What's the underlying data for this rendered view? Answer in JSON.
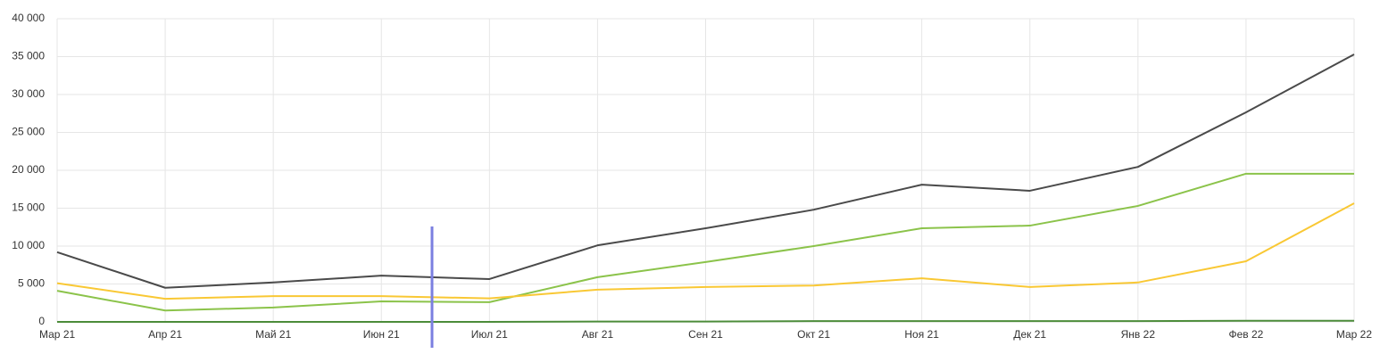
{
  "chart_data": {
    "type": "line",
    "categories": [
      "Мар 21",
      "Апр 21",
      "Май 21",
      "Июн 21",
      "Июл 21",
      "Авг 21",
      "Сен 21",
      "Окт 21",
      "Ноя 21",
      "Дек 21",
      "Янв 22",
      "Фев 22",
      "Мар 22"
    ],
    "series": [
      {
        "color": "#4a4a4a",
        "values": [
          9200,
          4500,
          5200,
          6100,
          5650,
          10100,
          12350,
          14800,
          18100,
          17300,
          20450,
          27650,
          35300
        ]
      },
      {
        "color": "#8bc34a",
        "values": [
          4100,
          1500,
          1900,
          2700,
          2600,
          5900,
          7900,
          10000,
          12350,
          12700,
          15300,
          19550,
          19550
        ]
      },
      {
        "color": "#f9c834",
        "values": [
          5100,
          3050,
          3400,
          3400,
          3100,
          4250,
          4600,
          4800,
          5750,
          4600,
          5200,
          8000,
          15650
        ]
      },
      {
        "color": "#4c8c3a",
        "values": [
          0,
          0,
          0,
          0,
          0,
          50,
          50,
          100,
          100,
          100,
          100,
          150,
          150
        ]
      }
    ],
    "ylim": [
      0,
      40000
    ],
    "yticks": [
      0,
      {
        "value": 5000,
        "label": "5 000"
      },
      {
        "value": 10000,
        "label": "10 000"
      },
      {
        "value": 15000,
        "label": "15 000"
      },
      {
        "value": 20000,
        "label": "20 000"
      },
      {
        "value": 25000,
        "label": "25 000"
      },
      {
        "value": 30000,
        "label": "30 000"
      },
      {
        "value": 35000,
        "label": "35 000"
      },
      {
        "value": 40000,
        "label": "40 000"
      }
    ],
    "grid": true
  }
}
